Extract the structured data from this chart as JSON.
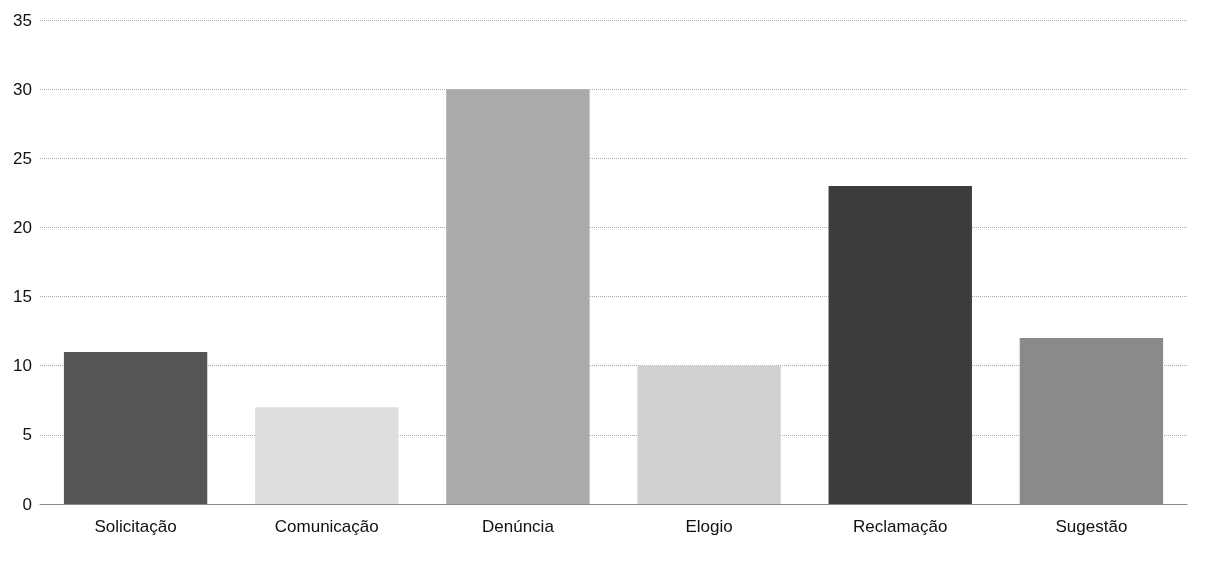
{
  "chart_data": {
    "type": "bar",
    "categories": [
      "Solicitação",
      "Comunicação",
      "Denúncia",
      "Elogio",
      "Reclamação",
      "Sugestão"
    ],
    "values": [
      11,
      7,
      30,
      10,
      23,
      12
    ],
    "colors": [
      "#555555",
      "#dddddd",
      "#aaaaaa",
      "#d0d0d0",
      "#3c3c3c",
      "#8a8a8a"
    ],
    "ylim": [
      0,
      35
    ],
    "yticks": [
      0,
      5,
      10,
      15,
      20,
      25,
      30,
      35
    ],
    "grid": "y"
  }
}
